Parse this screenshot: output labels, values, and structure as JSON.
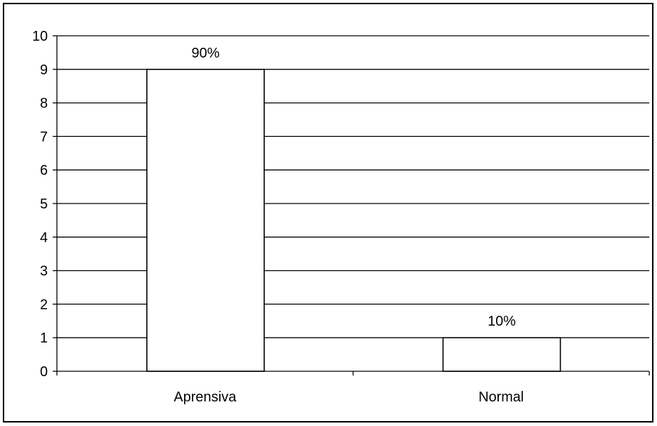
{
  "chart_data": {
    "type": "bar",
    "categories": [
      "Aprensiva",
      "Normal"
    ],
    "values": [
      9,
      1
    ],
    "data_labels": [
      "90%",
      "10%"
    ],
    "title": "",
    "xlabel": "",
    "ylabel": "",
    "ylim": [
      0,
      10
    ],
    "yticks": [
      0,
      1,
      2,
      3,
      4,
      5,
      6,
      7,
      8,
      9,
      10
    ],
    "grid": true,
    "legend": "none",
    "bar_fill": "#ffffff",
    "line_color": "#000000"
  }
}
